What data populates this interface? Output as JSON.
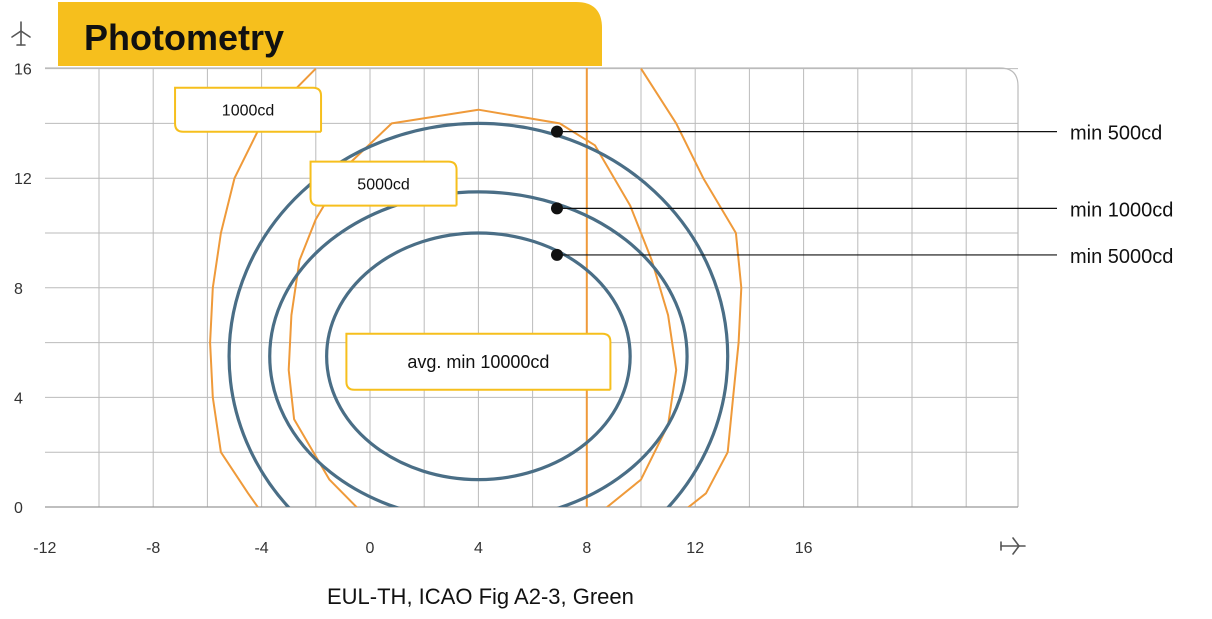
{
  "header": {
    "title": "Photometry",
    "accent_color": "#f6bf1d"
  },
  "chart_data": {
    "type": "line",
    "title": "Photometry",
    "caption": "EUL-TH, ICAO Fig A2-3, Green",
    "xlabel": "",
    "ylabel": "",
    "x_icon": "airplane-horizontal-icon",
    "y_icon": "airplane-vertical-icon",
    "xlim": [
      -13,
      25
    ],
    "ylim": [
      -0.5,
      16
    ],
    "x_ticks": [
      -12,
      -8,
      -4,
      0,
      4,
      8,
      12,
      16
    ],
    "y_ticks": [
      0,
      4,
      8,
      12,
      16
    ],
    "grid": true,
    "colors": {
      "requirement": "#4a6e86",
      "measured": "#ef9a3a",
      "grid": "#bbbbbb",
      "label_box": "#f6bf1d"
    },
    "requirement_series": [
      {
        "name": "min 500cd",
        "shape": "ellipse",
        "center": [
          4,
          5.5
        ],
        "semi_axes": [
          9.2,
          8.5
        ]
      },
      {
        "name": "min 1000cd",
        "shape": "ellipse",
        "center": [
          4,
          5.5
        ],
        "semi_axes": [
          7.7,
          6.0
        ]
      },
      {
        "name": "min 5000cd",
        "shape": "ellipse",
        "center": [
          4,
          5.5
        ],
        "semi_axes": [
          5.6,
          4.5
        ]
      }
    ],
    "requirement_labels": [
      {
        "text": "min 500cd",
        "point": [
          6.9,
          13.7
        ]
      },
      {
        "text": "min 1000cd",
        "point": [
          6.9,
          10.9
        ]
      },
      {
        "text": "min 5000cd",
        "point": [
          6.9,
          9.2
        ]
      },
      {
        "text": "avg. min 10000cd",
        "point": [
          4,
          5.3
        ]
      }
    ],
    "measured_series": [
      {
        "name": "1000cd",
        "label": "1000cd",
        "label_point": [
          -4.5,
          14.5
        ],
        "points": [
          [
            -2,
            16
          ],
          [
            -4,
            14
          ],
          [
            -5,
            12
          ],
          [
            -5.5,
            10
          ],
          [
            -5.8,
            8
          ],
          [
            -5.9,
            6
          ],
          [
            -5.8,
            4
          ],
          [
            -5.5,
            2
          ],
          [
            -4.5,
            0.5
          ],
          [
            -4,
            -0.2
          ]
        ],
        "points_right": [
          [
            10,
            16
          ],
          [
            11.3,
            14
          ],
          [
            12.3,
            12
          ],
          [
            13.5,
            10
          ],
          [
            13.7,
            8
          ],
          [
            13.6,
            6
          ],
          [
            13.4,
            4
          ],
          [
            13.2,
            2
          ],
          [
            12.4,
            0.5
          ],
          [
            11.5,
            -0.2
          ]
        ]
      },
      {
        "name": "5000cd",
        "label": "5000cd",
        "label_point": [
          0.5,
          11.8
        ],
        "points": [
          [
            -0.3,
            -0.2
          ],
          [
            -1.5,
            1
          ],
          [
            -2.8,
            3.2
          ],
          [
            -3.0,
            5
          ],
          [
            -2.9,
            7
          ],
          [
            -2.6,
            9
          ],
          [
            -2,
            10.5
          ],
          [
            -0.8,
            12.5
          ],
          [
            0.8,
            14
          ],
          [
            4,
            14.5
          ],
          [
            7,
            14
          ],
          [
            8.3,
            13.2
          ],
          [
            9.6,
            11
          ],
          [
            10.4,
            9
          ],
          [
            11,
            7
          ],
          [
            11.3,
            5
          ],
          [
            11,
            3
          ],
          [
            10,
            1
          ],
          [
            8.5,
            -0.2
          ]
        ]
      }
    ],
    "vertical_line": {
      "x": 8
    }
  }
}
